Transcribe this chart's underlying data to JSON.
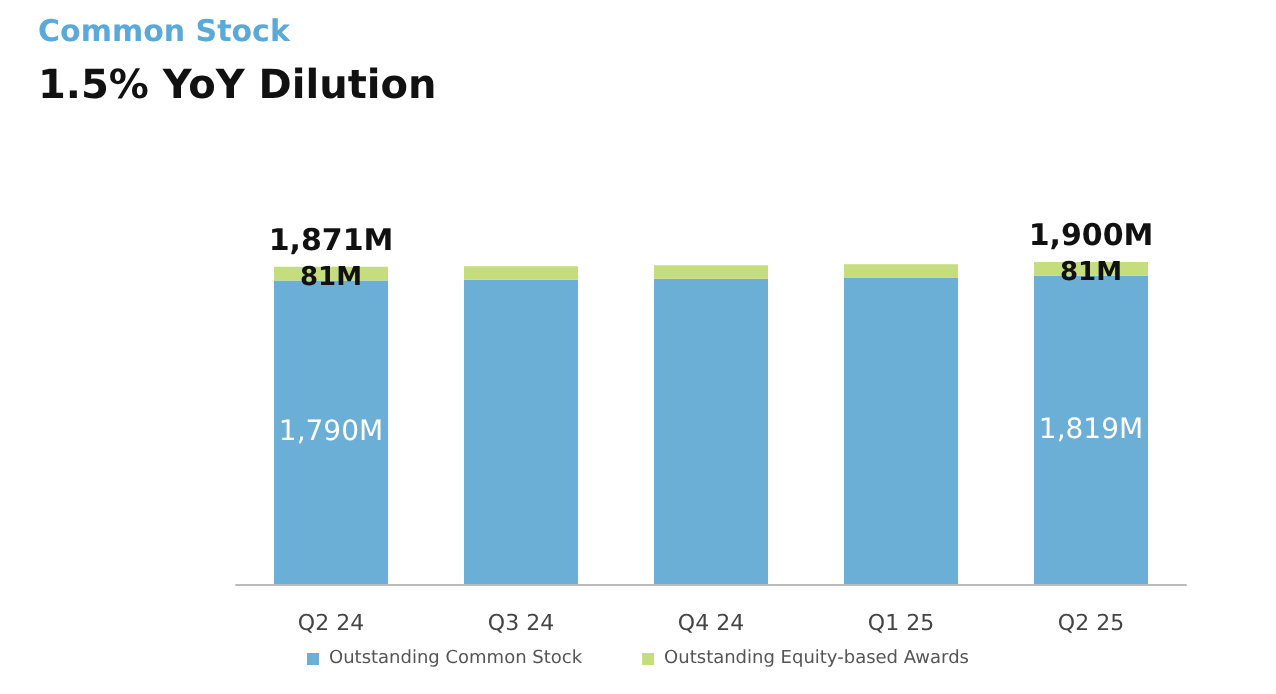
{
  "chart_data": {
    "type": "bar",
    "title": "Common Stock",
    "subtitle": "1.5% YoY Dilution",
    "categories": [
      "Q2 24",
      "Q3 24",
      "Q4 24",
      "Q1 25",
      "Q2 25"
    ],
    "stacked": true,
    "series": [
      {
        "name": "Outstanding Common Stock",
        "color": "#6baed6",
        "values": [
          1790,
          1795,
          1800,
          1808,
          1819
        ],
        "value_labels": [
          "1,790M",
          null,
          null,
          null,
          "1,819M"
        ]
      },
      {
        "name": "Outstanding Equity-based Awards",
        "color": "#c5dd7d",
        "values": [
          81,
          80,
          80,
          78,
          81
        ],
        "value_labels": [
          "81M",
          null,
          null,
          null,
          "81M"
        ]
      }
    ],
    "totals": [
      "1,871M",
      null,
      null,
      null,
      "1,900M"
    ],
    "legend": "bottom"
  }
}
